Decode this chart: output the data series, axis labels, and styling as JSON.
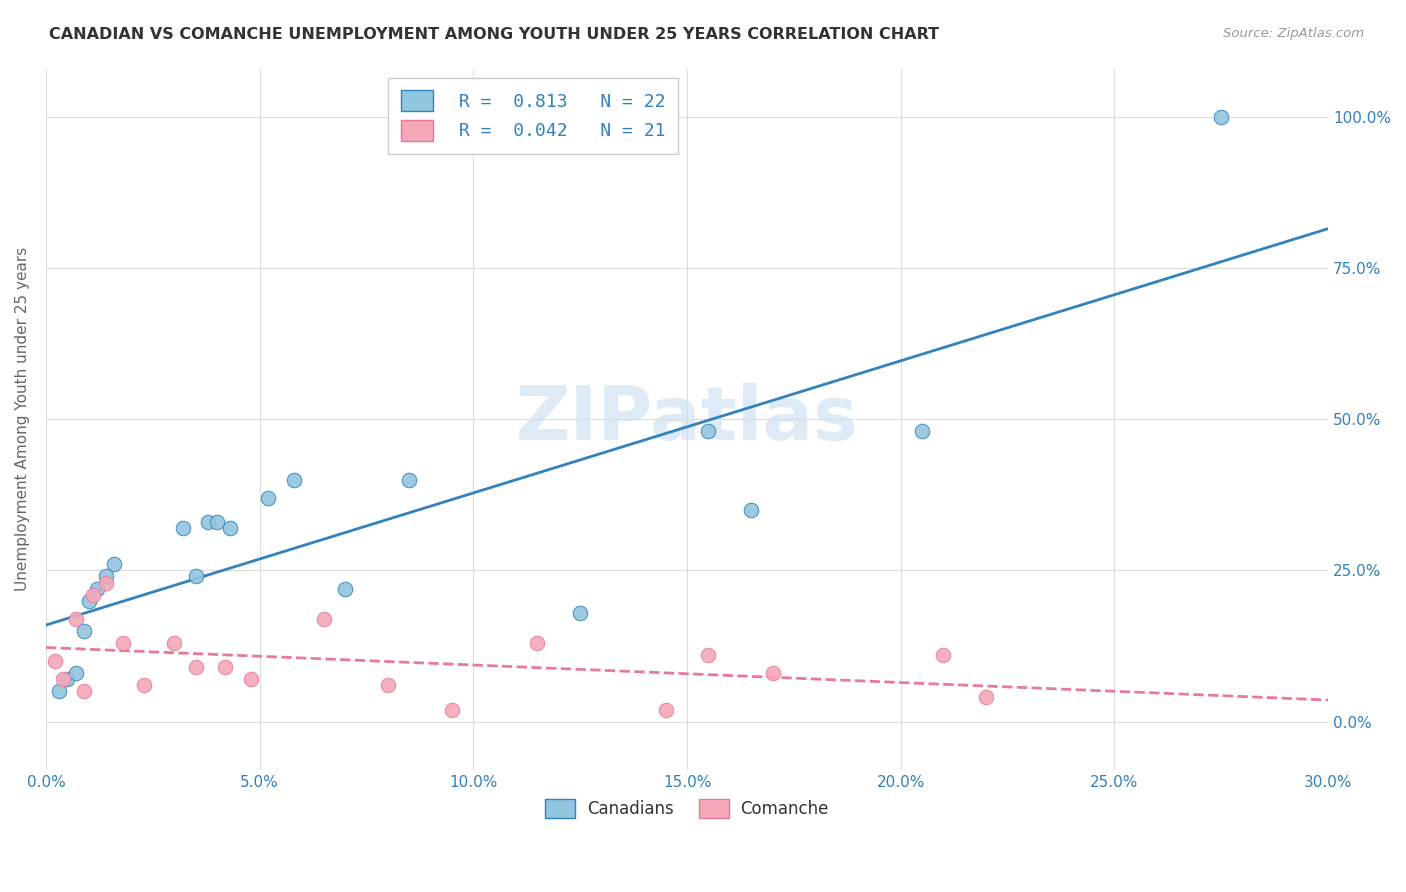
{
  "title": "CANADIAN VS COMANCHE UNEMPLOYMENT AMONG YOUTH UNDER 25 YEARS CORRELATION CHART",
  "source": "Source: ZipAtlas.com",
  "ylabel": "Unemployment Among Youth under 25 years",
  "xlabel_ticks": [
    "0.0%",
    "5.0%",
    "10.0%",
    "15.0%",
    "20.0%",
    "25.0%",
    "30.0%"
  ],
  "xlabel_vals": [
    0.0,
    5.0,
    10.0,
    15.0,
    20.0,
    25.0,
    30.0
  ],
  "ylabel_ticks": [
    "0.0%",
    "25.0%",
    "50.0%",
    "75.0%",
    "100.0%"
  ],
  "ylabel_vals": [
    0.0,
    25.0,
    50.0,
    75.0,
    100.0
  ],
  "xlim": [
    0.0,
    30.0
  ],
  "ylim": [
    -8.0,
    108.0
  ],
  "canadians_R": "0.813",
  "canadians_N": "22",
  "comanche_R": "0.042",
  "comanche_N": "21",
  "legend_label_1": "Canadians",
  "legend_label_2": "Comanche",
  "scatter_color_blue": "#92c5de",
  "scatter_color_pink": "#f4a8b8",
  "line_color_blue": "#3182bd",
  "line_color_pink": "#e8799a",
  "canadians_x": [
    0.3,
    0.5,
    0.7,
    0.9,
    1.0,
    1.2,
    1.4,
    1.6,
    3.2,
    3.5,
    3.8,
    4.0,
    4.3,
    5.2,
    5.8,
    7.0,
    8.5,
    12.5,
    15.5,
    16.5,
    20.5,
    27.5
  ],
  "canadians_y": [
    5.0,
    7.0,
    8.0,
    15.0,
    20.0,
    22.0,
    24.0,
    26.0,
    32.0,
    24.0,
    33.0,
    33.0,
    32.0,
    37.0,
    40.0,
    22.0,
    40.0,
    18.0,
    48.0,
    35.0,
    48.0,
    100.0
  ],
  "comanche_x": [
    0.2,
    0.4,
    0.7,
    0.9,
    1.1,
    1.4,
    1.8,
    2.3,
    3.0,
    3.5,
    4.2,
    4.8,
    6.5,
    8.0,
    9.5,
    11.5,
    14.5,
    15.5,
    17.0,
    21.0,
    22.0
  ],
  "comanche_y": [
    10.0,
    7.0,
    17.0,
    5.0,
    21.0,
    23.0,
    13.0,
    6.0,
    13.0,
    9.0,
    9.0,
    7.0,
    17.0,
    6.0,
    2.0,
    13.0,
    2.0,
    11.0,
    8.0,
    11.0,
    4.0
  ],
  "watermark_text": "ZIPatlas",
  "watermark_color": "#c8dff0",
  "bg_color": "#ffffff",
  "grid_color": "#dddddd",
  "title_color": "#333333",
  "axis_label_color": "#666666",
  "tick_color_blue": "#3182bd",
  "legend_text_color": "#333333"
}
